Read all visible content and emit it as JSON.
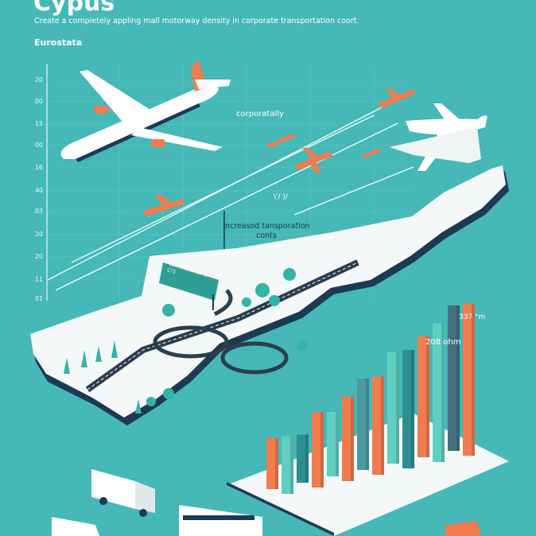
{
  "header": {
    "title": "Cypus",
    "subtitle": "Create a completely appling mall motorway density in corporate transportation coort.",
    "source": "Eurostata"
  },
  "axis": {
    "ticks": [
      "20",
      "00",
      "15",
      "00",
      "16",
      "40",
      "03",
      "20",
      "20",
      "11",
      "01"
    ]
  },
  "annotations": {
    "label_top": "corporatally",
    "label_mid": "\\'/ )/",
    "label_costs": "increasod tansporation conts",
    "value_high": "337 °m",
    "value_low": "208 ohm",
    "sign_text": "Connaaaiaaaa CP C?1"
  },
  "colors": {
    "background": "#45b8b7",
    "orange": "#f07c50",
    "teal": "#5fcfc0",
    "navy": "#1d3a52",
    "land": "#f4f8f8"
  },
  "bars": {
    "colors": [
      "#f07c50",
      "#5fcfc0",
      "#2e8f93",
      "#f07c50",
      "#5fcfc0",
      "#f07c50",
      "#4a9aa0",
      "#f07c50",
      "#5fcfc0",
      "#2e8f93",
      "#f07c50",
      "#5fcfc0",
      "#45707e",
      "#f07c50"
    ],
    "values": [
      0.2,
      0.25,
      0.18,
      0.38,
      0.3,
      0.45,
      0.5,
      0.55,
      0.65,
      0.7,
      0.72,
      0.85,
      0.9,
      0.95
    ]
  }
}
